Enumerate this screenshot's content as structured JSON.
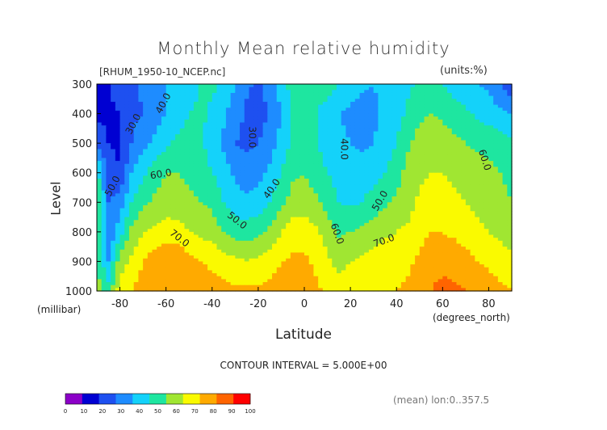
{
  "title": "Monthly Mean relative humidity",
  "dataset_label": "[RHUM_1950-10_NCEP.nc]",
  "units_label": "(units:%)",
  "y_axis_title": "Level",
  "y_axis_units": "(millibar)",
  "x_axis_title": "Latitude",
  "x_axis_units": "(degrees_north)",
  "contour_interval": "CONTOUR INTERVAL = 5.000E+00",
  "mean_note": "(mean) lon:0..357.5",
  "chart_data": {
    "type": "heatmap",
    "title": "Monthly Mean relative humidity",
    "xlabel": "Latitude",
    "ylabel": "Level",
    "xlim": [
      -90,
      90
    ],
    "ylim": [
      1000,
      300
    ],
    "x_ticks": [
      -80,
      -60,
      -40,
      -20,
      0,
      20,
      40,
      60,
      80
    ],
    "x_tick_labels": [
      "-80",
      "-60",
      "-40",
      "-20",
      "0",
      "20",
      "40",
      "60",
      "80"
    ],
    "y_ticks": [
      300,
      400,
      500,
      600,
      700,
      800,
      900,
      1000
    ],
    "y_tick_labels": [
      "300",
      "400",
      "500",
      "600",
      "700",
      "800",
      "900",
      "1000"
    ],
    "contour_interval": 5,
    "colorbar": {
      "ticks": [
        "0",
        "10",
        "20",
        "30",
        "40",
        "50",
        "60",
        "70",
        "80",
        "90",
        "100"
      ],
      "colors": [
        "#8c00c8",
        "#0000d2",
        "#1e50f0",
        "#1e8cff",
        "#14d2fa",
        "#1ee6a0",
        "#a0e632",
        "#fafa00",
        "#ffaa00",
        "#ff6400",
        "#ff0000"
      ]
    },
    "x": [
      -90,
      -85,
      -80,
      -75,
      -70,
      -65,
      -60,
      -55,
      -50,
      -45,
      -40,
      -35,
      -30,
      -25,
      -20,
      -15,
      -10,
      -5,
      0,
      5,
      10,
      15,
      20,
      25,
      30,
      35,
      40,
      45,
      50,
      55,
      60,
      65,
      70,
      75,
      80,
      85,
      90
    ],
    "levels": [
      300,
      400,
      500,
      600,
      700,
      800,
      900,
      1000
    ],
    "values": [
      [
        18,
        20,
        22,
        25,
        32,
        38,
        40,
        42,
        45,
        50,
        52,
        48,
        40,
        32,
        28,
        35,
        45,
        55,
        58,
        56,
        55,
        50,
        45,
        42,
        40,
        42,
        45,
        48,
        52,
        55,
        50,
        45,
        42,
        40,
        38,
        30,
        22
      ],
      [
        18,
        19,
        20,
        28,
        30,
        36,
        40,
        45,
        50,
        52,
        48,
        42,
        34,
        28,
        26,
        30,
        40,
        50,
        55,
        50,
        45,
        40,
        38,
        35,
        38,
        42,
        46,
        52,
        58,
        60,
        58,
        55,
        52,
        48,
        45,
        42,
        40
      ],
      [
        25,
        20,
        18,
        30,
        36,
        42,
        48,
        52,
        55,
        52,
        45,
        38,
        30,
        28,
        30,
        35,
        44,
        52,
        55,
        50,
        46,
        42,
        40,
        38,
        40,
        44,
        50,
        58,
        64,
        66,
        65,
        62,
        60,
        58,
        58,
        55,
        52
      ],
      [
        55,
        25,
        20,
        40,
        48,
        55,
        60,
        60,
        58,
        55,
        50,
        45,
        38,
        35,
        36,
        42,
        50,
        58,
        60,
        55,
        50,
        46,
        44,
        45,
        46,
        50,
        56,
        64,
        68,
        70,
        70,
        68,
        65,
        64,
        62,
        60,
        58
      ],
      [
        60,
        30,
        35,
        50,
        58,
        62,
        65,
        64,
        62,
        60,
        58,
        50,
        44,
        42,
        44,
        50,
        58,
        64,
        65,
        62,
        56,
        50,
        48,
        50,
        54,
        58,
        62,
        66,
        72,
        74,
        75,
        72,
        70,
        68,
        64,
        62,
        60
      ],
      [
        60,
        30,
        45,
        62,
        70,
        72,
        75,
        74,
        70,
        68,
        65,
        60,
        56,
        55,
        58,
        62,
        70,
        75,
        76,
        72,
        65,
        58,
        60,
        62,
        65,
        68,
        70,
        72,
        76,
        80,
        80,
        78,
        75,
        72,
        70,
        68,
        65
      ],
      [
        60,
        40,
        65,
        72,
        80,
        85,
        88,
        88,
        84,
        80,
        78,
        75,
        72,
        70,
        72,
        75,
        80,
        82,
        82,
        78,
        72,
        66,
        70,
        72,
        75,
        76,
        76,
        78,
        82,
        88,
        88,
        86,
        84,
        80,
        78,
        75,
        72
      ],
      [
        65,
        55,
        75,
        80,
        85,
        88,
        90,
        90,
        88,
        86,
        84,
        83,
        82,
        82,
        82,
        83,
        85,
        86,
        85,
        82,
        78,
        76,
        78,
        78,
        78,
        78,
        80,
        82,
        86,
        90,
        92,
        92,
        90,
        88,
        85,
        82,
        80
      ]
    ],
    "contour_labels": [
      "30.0",
      "40.0",
      "50.0",
      "60.0",
      "70.0",
      "30.0",
      "40.0",
      "50.0",
      "40.0",
      "60.0",
      "50.0",
      "70.0",
      "60.0"
    ]
  }
}
